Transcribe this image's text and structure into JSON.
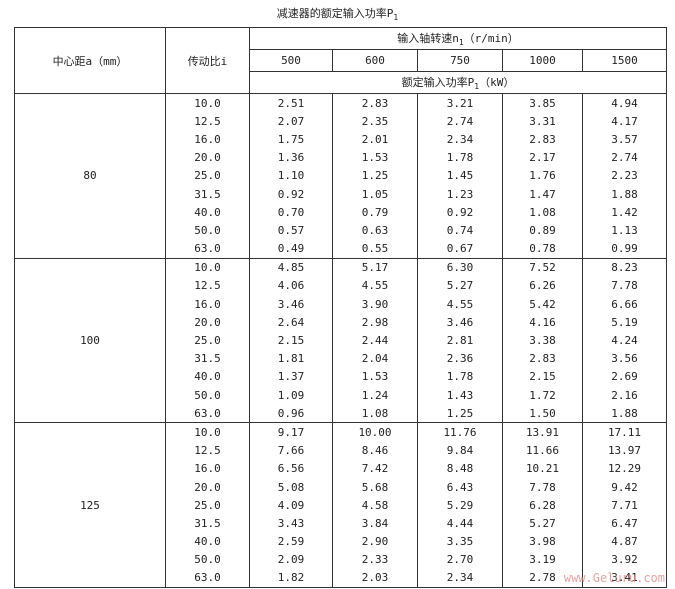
{
  "title": {
    "text": "减速器的额定输入功率P",
    "sub": "1"
  },
  "header": {
    "center_distance": "中心距a（mm）",
    "ratio": "传动比i",
    "speed": {
      "text": "输入轴转速n",
      "sub": "1",
      "unit": "（r/min）"
    },
    "speeds": [
      "500",
      "600",
      "750",
      "1000",
      "1500"
    ],
    "power": {
      "text": "额定输入功率P",
      "sub": "1",
      "unit": "（kW）"
    }
  },
  "groups": [
    {
      "center_distance": "80",
      "ratios": [
        "10.0",
        "12.5",
        "16.0",
        "20.0",
        "25.0",
        "31.5",
        "40.0",
        "50.0",
        "63.0"
      ],
      "rows": [
        [
          "2.51",
          "2.83",
          "3.21",
          "3.85",
          "4.94"
        ],
        [
          "2.07",
          "2.35",
          "2.74",
          "3.31",
          "4.17"
        ],
        [
          "1.75",
          "2.01",
          "2.34",
          "2.83",
          "3.57"
        ],
        [
          "1.36",
          "1.53",
          "1.78",
          "2.17",
          "2.74"
        ],
        [
          "1.10",
          "1.25",
          "1.45",
          "1.76",
          "2.23"
        ],
        [
          "0.92",
          "1.05",
          "1.23",
          "1.47",
          "1.88"
        ],
        [
          "0.70",
          "0.79",
          "0.92",
          "1.08",
          "1.42"
        ],
        [
          "0.57",
          "0.63",
          "0.74",
          "0.89",
          "1.13"
        ],
        [
          "0.49",
          "0.55",
          "0.67",
          "0.78",
          "0.99"
        ]
      ]
    },
    {
      "center_distance": "100",
      "ratios": [
        "10.0",
        "12.5",
        "16.0",
        "20.0",
        "25.0",
        "31.5",
        "40.0",
        "50.0",
        "63.0"
      ],
      "rows": [
        [
          "4.85",
          "5.17",
          "6.30",
          "7.52",
          "8.23"
        ],
        [
          "4.06",
          "4.55",
          "5.27",
          "6.26",
          "7.78"
        ],
        [
          "3.46",
          "3.90",
          "4.55",
          "5.42",
          "6.66"
        ],
        [
          "2.64",
          "2.98",
          "3.46",
          "4.16",
          "5.19"
        ],
        [
          "2.15",
          "2.44",
          "2.81",
          "3.38",
          "4.24"
        ],
        [
          "1.81",
          "2.04",
          "2.36",
          "2.83",
          "3.56"
        ],
        [
          "1.37",
          "1.53",
          "1.78",
          "2.15",
          "2.69"
        ],
        [
          "1.09",
          "1.24",
          "1.43",
          "1.72",
          "2.16"
        ],
        [
          "0.96",
          "1.08",
          "1.25",
          "1.50",
          "1.88"
        ]
      ]
    },
    {
      "center_distance": "125",
      "ratios": [
        "10.0",
        "12.5",
        "16.0",
        "20.0",
        "25.0",
        "31.5",
        "40.0",
        "50.0",
        "63.0"
      ],
      "rows": [
        [
          "9.17",
          "10.00",
          "11.76",
          "13.91",
          "17.11"
        ],
        [
          "7.66",
          "8.46",
          "9.84",
          "11.66",
          "13.97"
        ],
        [
          "6.56",
          "7.42",
          "8.48",
          "10.21",
          "12.29"
        ],
        [
          "5.08",
          "5.68",
          "6.43",
          "7.78",
          "9.42"
        ],
        [
          "4.09",
          "4.58",
          "5.29",
          "6.28",
          "7.71"
        ],
        [
          "3.43",
          "3.84",
          "4.44",
          "5.27",
          "6.47"
        ],
        [
          "2.59",
          "2.90",
          "3.35",
          "3.98",
          "4.87"
        ],
        [
          "2.09",
          "2.33",
          "2.70",
          "3.19",
          "3.92"
        ],
        [
          "1.82",
          "2.03",
          "2.34",
          "2.78",
          "3.41"
        ]
      ]
    }
  ],
  "watermark": "www.Geluru.com"
}
